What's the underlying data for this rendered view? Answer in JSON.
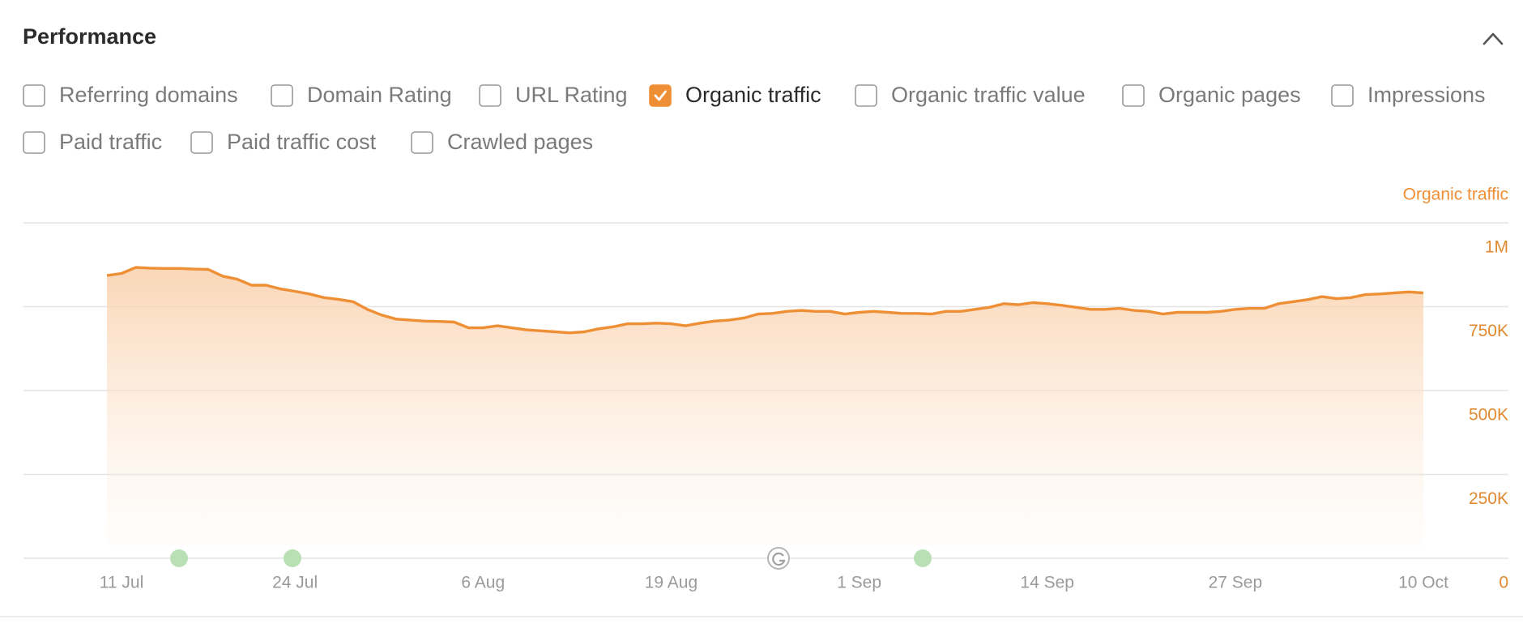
{
  "header": {
    "title": "Performance"
  },
  "options": [
    {
      "label": "Referring domains",
      "checked": false
    },
    {
      "label": "Domain Rating",
      "checked": false
    },
    {
      "label": "URL Rating",
      "checked": false
    },
    {
      "label": "Organic traffic",
      "checked": true
    },
    {
      "label": "Organic traffic value",
      "checked": false
    },
    {
      "label": "Organic pages",
      "checked": false
    },
    {
      "label": "Impressions",
      "checked": false
    },
    {
      "label": "Paid traffic",
      "checked": false
    },
    {
      "label": "Paid traffic cost",
      "checked": false
    },
    {
      "label": "Crawled pages",
      "checked": false
    }
  ],
  "chart_data": {
    "type": "area",
    "x": [
      "11 Jul",
      "12 Jul",
      "13 Jul",
      "14 Jul",
      "15 Jul",
      "16 Jul",
      "17 Jul",
      "18 Jul",
      "19 Jul",
      "20 Jul",
      "21 Jul",
      "22 Jul",
      "23 Jul",
      "24 Jul",
      "25 Jul",
      "26 Jul",
      "27 Jul",
      "28 Jul",
      "29 Jul",
      "30 Jul",
      "31 Jul",
      "1 Aug",
      "2 Aug",
      "3 Aug",
      "4 Aug",
      "5 Aug",
      "6 Aug",
      "7 Aug",
      "8 Aug",
      "9 Aug",
      "10 Aug",
      "11 Aug",
      "12 Aug",
      "13 Aug",
      "14 Aug",
      "15 Aug",
      "16 Aug",
      "17 Aug",
      "18 Aug",
      "19 Aug",
      "20 Aug",
      "21 Aug",
      "22 Aug",
      "23 Aug",
      "24 Aug",
      "25 Aug",
      "26 Aug",
      "27 Aug",
      "28 Aug",
      "29 Aug",
      "30 Aug",
      "31 Aug",
      "1 Sep",
      "2 Sep",
      "3 Sep",
      "4 Sep",
      "5 Sep",
      "6 Sep",
      "7 Sep",
      "8 Sep",
      "9 Sep",
      "10 Sep",
      "11 Sep",
      "12 Sep",
      "13 Sep",
      "14 Sep",
      "15 Sep",
      "16 Sep",
      "17 Sep",
      "18 Sep",
      "19 Sep",
      "20 Sep",
      "21 Sep",
      "22 Sep",
      "23 Sep",
      "24 Sep",
      "25 Sep",
      "26 Sep",
      "27 Sep",
      "28 Sep",
      "29 Sep",
      "30 Sep",
      "1 Oct",
      "2 Oct",
      "3 Oct",
      "4 Oct",
      "5 Oct",
      "6 Oct",
      "7 Oct",
      "8 Oct",
      "9 Oct",
      "10 Oct"
    ],
    "series": [
      {
        "name": "Organic traffic",
        "color": "#ef8f35",
        "values": [
          843000,
          849000,
          867000,
          865000,
          864000,
          864000,
          862000,
          861000,
          841000,
          832000,
          814000,
          814000,
          803000,
          796000,
          788000,
          777000,
          772000,
          765000,
          742000,
          725000,
          713000,
          710000,
          707000,
          706000,
          704000,
          687000,
          687000,
          693000,
          687000,
          681000,
          678000,
          675000,
          672000,
          675000,
          684000,
          690000,
          699000,
          699000,
          701000,
          699000,
          693000,
          701000,
          707000,
          710000,
          716000,
          728000,
          730000,
          736000,
          739000,
          736000,
          736000,
          728000,
          733000,
          736000,
          733000,
          730000,
          730000,
          728000,
          736000,
          736000,
          742000,
          748000,
          759000,
          756000,
          762000,
          759000,
          754000,
          748000,
          742000,
          742000,
          745000,
          739000,
          736000,
          728000,
          733000,
          733000,
          733000,
          736000,
          742000,
          745000,
          745000,
          759000,
          765000,
          771000,
          780000,
          774000,
          777000,
          786000,
          788000,
          791000,
          794000,
          791000
        ]
      }
    ],
    "ylim": [
      0,
      1000000
    ],
    "yticks": [
      0,
      {
        "value": 250000,
        "label": "250K"
      },
      {
        "value": 500000,
        "label": "500K"
      },
      {
        "value": 750000,
        "label": "750K"
      },
      {
        "value": 1000000,
        "label": "1M"
      }
    ],
    "xticks": [
      "11 Jul",
      "24 Jul",
      "6 Aug",
      "19 Aug",
      "1 Sep",
      "14 Sep",
      "27 Sep",
      "10 Oct"
    ],
    "grid": true
  }
}
